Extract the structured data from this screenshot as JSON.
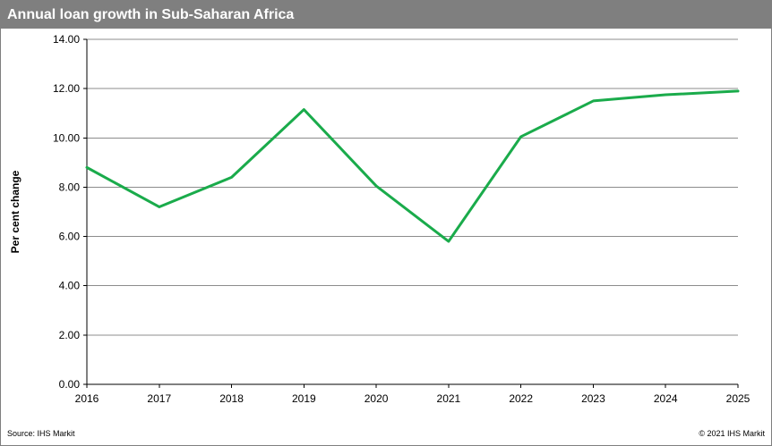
{
  "chart_data": {
    "type": "line",
    "title": "Annual loan growth in Sub-Saharan Africa",
    "xlabel": "",
    "ylabel": "Per cent change",
    "ylim": [
      0,
      14
    ],
    "yticks": [
      "0.00",
      "2.00",
      "4.00",
      "6.00",
      "8.00",
      "10.00",
      "12.00",
      "14.00"
    ],
    "categories": [
      "2016",
      "2017",
      "2018",
      "2019",
      "2020",
      "2021",
      "2022",
      "2023",
      "2024",
      "2025"
    ],
    "series": [
      {
        "name": "Annual loan growth",
        "color": "#1aab4b",
        "values": [
          8.8,
          7.2,
          8.4,
          11.15,
          8.05,
          5.8,
          10.05,
          11.5,
          11.75,
          11.9
        ]
      }
    ],
    "grid": true
  },
  "footer": {
    "source": "Source:  IHS Markit",
    "copyright": "© 2021  IHS Markit"
  }
}
